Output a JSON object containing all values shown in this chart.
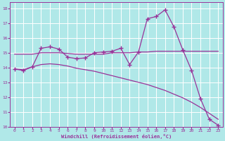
{
  "background_color": "#b0e8e8",
  "grid_color": "#ffffff",
  "line_color": "#993399",
  "xlabel": "Windchill (Refroidissement éolien,°C)",
  "xlim": [
    -0.5,
    23.5
  ],
  "ylim": [
    10,
    18.4
  ],
  "yticks": [
    10,
    11,
    12,
    13,
    14,
    15,
    16,
    17,
    18
  ],
  "xticks": [
    0,
    1,
    2,
    3,
    4,
    5,
    6,
    7,
    8,
    9,
    10,
    11,
    12,
    13,
    14,
    15,
    16,
    17,
    18,
    19,
    20,
    21,
    22,
    23
  ],
  "series": [
    {
      "x": [
        0,
        1,
        2,
        3,
        4,
        5,
        6,
        7,
        8,
        9,
        10,
        11,
        12,
        13,
        14,
        15,
        16,
        17,
        18,
        19,
        20,
        21,
        22,
        23
      ],
      "y": [
        13.9,
        13.8,
        14.05,
        15.3,
        15.4,
        15.25,
        14.7,
        14.6,
        14.65,
        15.0,
        15.05,
        15.1,
        15.3,
        14.2,
        15.05,
        17.3,
        17.45,
        17.9,
        16.75,
        15.2,
        13.8,
        11.9,
        10.5,
        10.1
      ],
      "marker": "+",
      "linewidth": 0.9,
      "markersize": 4,
      "markeredgewidth": 1.0
    },
    {
      "x": [
        0,
        1,
        2,
        3,
        4,
        5,
        6,
        7,
        8,
        9,
        10,
        11,
        12,
        13,
        14,
        15,
        16,
        17,
        18,
        19,
        20,
        21,
        22,
        23
      ],
      "y": [
        13.9,
        13.85,
        14.05,
        14.2,
        14.25,
        14.2,
        14.1,
        13.95,
        13.85,
        13.75,
        13.6,
        13.45,
        13.3,
        13.15,
        13.0,
        12.85,
        12.65,
        12.45,
        12.2,
        11.95,
        11.65,
        11.3,
        10.9,
        10.5
      ],
      "marker": null,
      "linewidth": 0.9,
      "markersize": 0,
      "markeredgewidth": 0
    },
    {
      "x": [
        0,
        2,
        3,
        4,
        5,
        6,
        7,
        8,
        9,
        10,
        11,
        12,
        13,
        14,
        15,
        16,
        17,
        18,
        19,
        20,
        21,
        22,
        23
      ],
      "y": [
        14.9,
        14.9,
        15.0,
        15.0,
        15.0,
        14.95,
        14.9,
        14.9,
        14.9,
        14.9,
        15.0,
        15.0,
        15.0,
        15.05,
        15.05,
        15.1,
        15.1,
        15.1,
        15.1,
        15.1,
        15.1,
        15.1,
        15.1
      ],
      "marker": null,
      "linewidth": 0.9,
      "markersize": 0,
      "markeredgewidth": 0
    }
  ]
}
